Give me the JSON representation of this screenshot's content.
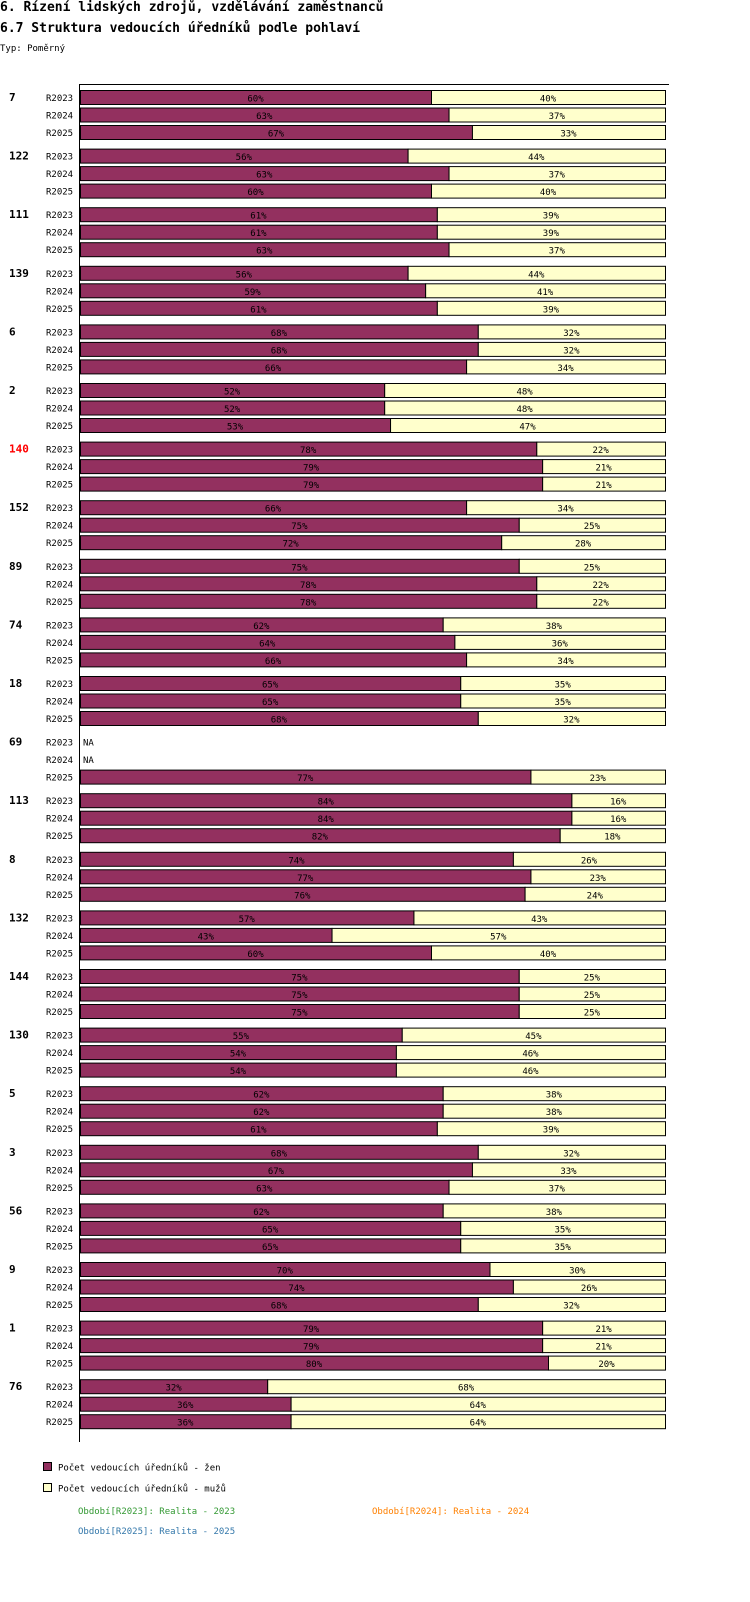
{
  "page": {
    "title": "6. Řízení lidských zdrojů, vzdělávání zaměstnanců",
    "subtitle": "6.7 Struktura vedoucích úředníků podle pohlaví",
    "type_label": "Typ: Poměrný"
  },
  "colors": {
    "women": "#93305f",
    "men": "#ffffcc",
    "highlight": "#ff0000",
    "period_2023": "#339933",
    "period_2024": "#ff8000",
    "period_2025": "#3377aa"
  },
  "chart_data": {
    "type": "bar",
    "stacked": true,
    "orientation": "horizontal",
    "unit": "%",
    "title": "6.7 Struktura vedoucích úředníků podle pohlaví",
    "na_label": "NA",
    "highlight_group": "140",
    "series_names": [
      "Počet vedoucích úředníků - žen",
      "Počet vedoucích úředníků - mužů"
    ],
    "periods": [
      "R2023",
      "R2024",
      "R2025"
    ],
    "groups": [
      {
        "label": "7",
        "women": [
          60,
          63,
          67
        ],
        "men": [
          40,
          37,
          33
        ]
      },
      {
        "label": "122",
        "women": [
          56,
          63,
          60
        ],
        "men": [
          44,
          37,
          40
        ]
      },
      {
        "label": "111",
        "women": [
          61,
          61,
          63
        ],
        "men": [
          39,
          39,
          37
        ]
      },
      {
        "label": "139",
        "women": [
          56,
          59,
          61
        ],
        "men": [
          44,
          41,
          39
        ]
      },
      {
        "label": "6",
        "women": [
          68,
          68,
          66
        ],
        "men": [
          32,
          32,
          34
        ]
      },
      {
        "label": "2",
        "women": [
          52,
          52,
          53
        ],
        "men": [
          48,
          48,
          47
        ]
      },
      {
        "label": "140",
        "women": [
          78,
          79,
          79
        ],
        "men": [
          22,
          21,
          21
        ]
      },
      {
        "label": "152",
        "women": [
          66,
          75,
          72
        ],
        "men": [
          34,
          25,
          28
        ]
      },
      {
        "label": "89",
        "women": [
          75,
          78,
          78
        ],
        "men": [
          25,
          22,
          22
        ]
      },
      {
        "label": "74",
        "women": [
          62,
          64,
          66
        ],
        "men": [
          38,
          36,
          34
        ]
      },
      {
        "label": "18",
        "women": [
          65,
          65,
          68
        ],
        "men": [
          35,
          35,
          32
        ]
      },
      {
        "label": "69",
        "women": [
          null,
          null,
          77
        ],
        "men": [
          null,
          null,
          23
        ]
      },
      {
        "label": "113",
        "women": [
          84,
          84,
          82
        ],
        "men": [
          16,
          16,
          18
        ]
      },
      {
        "label": "8",
        "women": [
          74,
          77,
          76
        ],
        "men": [
          26,
          23,
          24
        ]
      },
      {
        "label": "132",
        "women": [
          57,
          43,
          60
        ],
        "men": [
          43,
          57,
          40
        ]
      },
      {
        "label": "144",
        "women": [
          75,
          75,
          75
        ],
        "men": [
          25,
          25,
          25
        ]
      },
      {
        "label": "130",
        "women": [
          55,
          54,
          54
        ],
        "men": [
          45,
          46,
          46
        ]
      },
      {
        "label": "5",
        "women": [
          62,
          62,
          61
        ],
        "men": [
          38,
          38,
          39
        ]
      },
      {
        "label": "3",
        "women": [
          68,
          67,
          63
        ],
        "men": [
          32,
          33,
          37
        ]
      },
      {
        "label": "56",
        "women": [
          62,
          65,
          65
        ],
        "men": [
          38,
          35,
          35
        ]
      },
      {
        "label": "9",
        "women": [
          70,
          74,
          68
        ],
        "men": [
          30,
          26,
          32
        ]
      },
      {
        "label": "1",
        "women": [
          79,
          79,
          80
        ],
        "men": [
          21,
          21,
          20
        ]
      },
      {
        "label": "76",
        "women": [
          32,
          36,
          36
        ],
        "men": [
          68,
          64,
          64
        ]
      }
    ],
    "xlim": [
      0,
      100
    ],
    "legend": {
      "position": "bottom-left",
      "items": [
        "Počet vedoucích úředníků - žen",
        "Počet vedoucích úředníků - mužů"
      ]
    },
    "period_notes": [
      "Období[R2023]: Realita - 2023",
      "Období[R2024]: Realita - 2024",
      "Období[R2025]: Realita - 2025"
    ]
  }
}
